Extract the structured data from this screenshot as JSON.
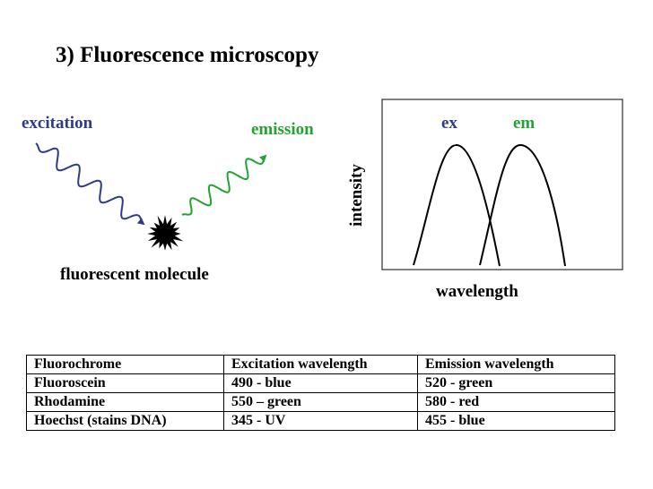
{
  "slide": {
    "title": "3) Fluorescence microscopy"
  },
  "diagram": {
    "excitation_label": "excitation",
    "emission_label": "emission",
    "molecule_label": "fluorescent molecule",
    "excitation_color": "#2f3a8a",
    "emission_color": "#22a432"
  },
  "spectrum": {
    "ex_label": "ex",
    "em_label": "em",
    "y_label": "intensity",
    "x_label": "wavelength"
  },
  "table": {
    "headers": [
      "Fluorochrome",
      "Excitation wavelength",
      "Emission wavelength"
    ],
    "rows": [
      [
        "Fluoroscein",
        "490 - blue",
        "520 - green"
      ],
      [
        "Rhodamine",
        "550 – green",
        "580 - red"
      ],
      [
        "Hoechst (stains DNA)",
        "345 - UV",
        "455 - blue"
      ]
    ]
  }
}
